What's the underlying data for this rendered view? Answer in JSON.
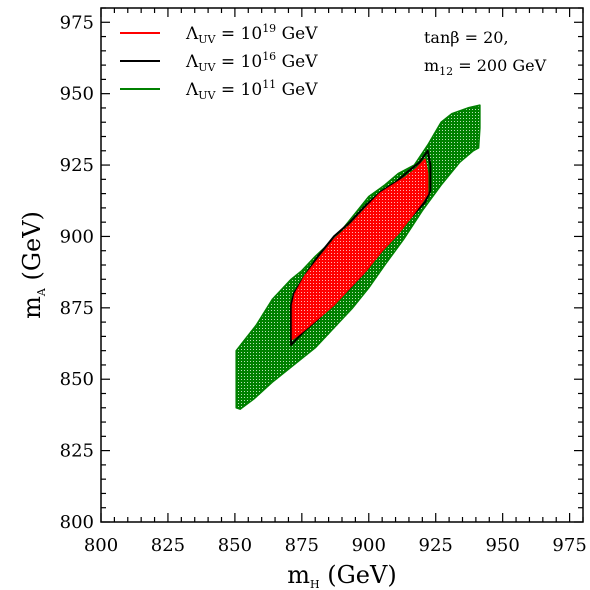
{
  "chart_data": {
    "type": "area",
    "xlabel": "m",
    "xlabel_sub": "H",
    "xlabel_unit": " (GeV)",
    "ylabel": "m",
    "ylabel_sub": "A",
    "ylabel_unit": " (GeV)",
    "xlim": [
      800,
      980
    ],
    "ylim": [
      800,
      980
    ],
    "xticks": [
      800,
      825,
      850,
      875,
      900,
      925,
      950,
      975
    ],
    "yticks": [
      800,
      825,
      850,
      875,
      900,
      925,
      950,
      975
    ],
    "grid": false,
    "legend_position": "top-left",
    "annotation": {
      "line1": "tanβ = 20,",
      "line2_main": "m",
      "line2_sub": "12",
      "line2_rest": " = 200 GeV"
    },
    "series": [
      {
        "name": "Λ_UV = 10^11 GeV",
        "legend": {
          "sym": "Λ",
          "sub": "UV",
          "pre": " = 10",
          "exp": "11",
          "post": " GeV"
        },
        "color": "#008000",
        "fill": "#008000",
        "outline": [
          [
            850.5,
            840
          ],
          [
            852,
            839.5
          ],
          [
            857,
            843
          ],
          [
            864,
            849
          ],
          [
            872,
            855
          ],
          [
            880,
            861
          ],
          [
            888,
            869
          ],
          [
            894,
            875
          ],
          [
            900,
            882
          ],
          [
            906,
            890
          ],
          [
            913,
            899
          ],
          [
            920,
            909
          ],
          [
            927,
            918
          ],
          [
            934,
            926
          ],
          [
            939,
            930
          ],
          [
            941,
            931
          ],
          [
            941.5,
            938
          ],
          [
            941.5,
            946
          ],
          [
            937,
            945
          ],
          [
            931,
            943
          ],
          [
            927,
            940
          ],
          [
            922,
            932
          ],
          [
            917,
            925
          ],
          [
            911,
            922
          ],
          [
            906,
            918
          ],
          [
            900,
            914
          ],
          [
            894,
            907
          ],
          [
            888,
            900
          ],
          [
            880,
            893
          ],
          [
            875,
            888
          ],
          [
            871,
            885
          ],
          [
            864,
            878
          ],
          [
            858,
            869
          ],
          [
            853,
            863
          ],
          [
            850.5,
            860
          ]
        ]
      },
      {
        "name": "Λ_UV = 10^16 GeV",
        "legend": {
          "sym": "Λ",
          "sub": "UV",
          "pre": " = 10",
          "exp": "16",
          "post": " GeV"
        },
        "color": "#000000",
        "fill": "none",
        "outline": [
          [
            871,
            862
          ],
          [
            872,
            863
          ],
          [
            876,
            867
          ],
          [
            881,
            871
          ],
          [
            886,
            876
          ],
          [
            892,
            881
          ],
          [
            898,
            887
          ],
          [
            904,
            894
          ],
          [
            910,
            901
          ],
          [
            916,
            907
          ],
          [
            921,
            912
          ],
          [
            923,
            916
          ],
          [
            923,
            925
          ],
          [
            922,
            930
          ],
          [
            919,
            926
          ],
          [
            915,
            923
          ],
          [
            910,
            919
          ],
          [
            905,
            916
          ],
          [
            899,
            911
          ],
          [
            893,
            905
          ],
          [
            887,
            900
          ],
          [
            881,
            893
          ],
          [
            876,
            886
          ],
          [
            872,
            880
          ],
          [
            871,
            876
          ]
        ]
      },
      {
        "name": "Λ_UV = 10^19 GeV",
        "legend": {
          "sym": "Λ",
          "sub": "UV",
          "pre": " = 10",
          "exp": "19",
          "post": " GeV"
        },
        "color": "#ff0000",
        "fill": "#ff0000",
        "outline": [
          [
            871.5,
            864
          ],
          [
            873,
            865
          ],
          [
            877,
            868
          ],
          [
            882,
            872
          ],
          [
            887,
            876
          ],
          [
            893,
            882
          ],
          [
            899,
            888
          ],
          [
            905,
            895
          ],
          [
            911,
            901
          ],
          [
            916,
            907
          ],
          [
            920,
            912
          ],
          [
            922,
            915
          ],
          [
            922,
            922
          ],
          [
            921,
            927
          ],
          [
            918,
            924
          ],
          [
            914,
            921
          ],
          [
            909,
            918
          ],
          [
            904,
            915
          ],
          [
            899,
            910
          ],
          [
            893,
            904
          ],
          [
            887,
            899
          ],
          [
            881,
            892
          ],
          [
            876,
            886
          ],
          [
            872.5,
            880
          ],
          [
            871.5,
            876
          ]
        ]
      }
    ]
  }
}
